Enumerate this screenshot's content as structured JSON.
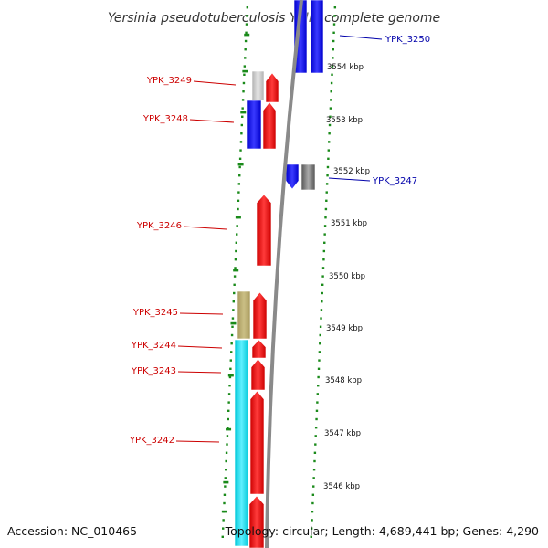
{
  "title": "Yersinia pseudotuberculosis YPIII, complete genome",
  "accession": "Accession: NC_010465",
  "topology": "Topology: circular; Length: 4,689,441 bp; Genes: 4,290",
  "colors": {
    "forward_label": "#cc0000",
    "reverse_label": "#0000aa",
    "backbone": "#8a8a8a",
    "tick": "#1a8a1a"
  },
  "kbp_ticks": [
    "3554 kbp",
    "3553 kbp",
    "3552 kbp",
    "3551 kbp",
    "3550 kbp",
    "3549 kbp",
    "3548 kbp",
    "3547 kbp",
    "3546 kbp"
  ],
  "genes": [
    {
      "label": "YPK_3250",
      "strand": "reverse",
      "color": "#0000aa"
    },
    {
      "label": "YPK_3249",
      "strand": "forward",
      "color": "#cc0000"
    },
    {
      "label": "YPK_3248",
      "strand": "forward",
      "color": "#cc0000"
    },
    {
      "label": "YPK_3247",
      "strand": "reverse",
      "color": "#0000aa"
    },
    {
      "label": "YPK_3246",
      "strand": "forward",
      "color": "#cc0000"
    },
    {
      "label": "YPK_3245",
      "strand": "forward",
      "color": "#cc0000"
    },
    {
      "label": "YPK_3244",
      "strand": "forward",
      "color": "#cc0000"
    },
    {
      "label": "YPK_3243",
      "strand": "forward",
      "color": "#cc0000"
    },
    {
      "label": "YPK_3242",
      "strand": "forward",
      "color": "#cc0000"
    }
  ]
}
